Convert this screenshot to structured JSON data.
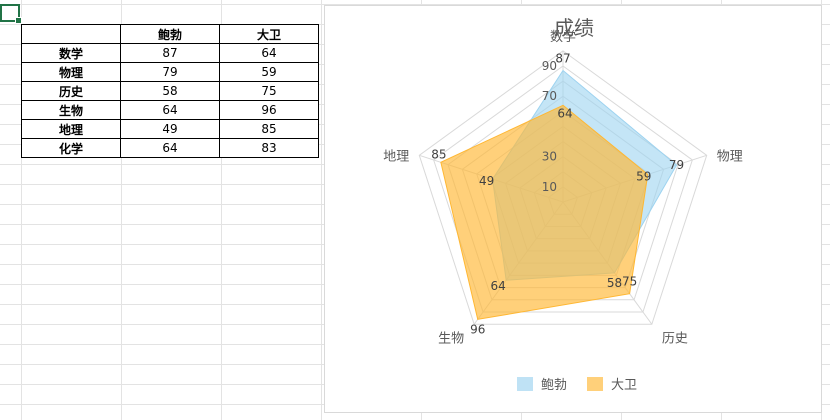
{
  "table": {
    "headers": [
      "",
      "鲍勃",
      "大卫"
    ],
    "rows": [
      {
        "subject": "数学",
        "bob": "87",
        "david": "64"
      },
      {
        "subject": "物理",
        "bob": "79",
        "david": "59"
      },
      {
        "subject": "历史",
        "bob": "58",
        "david": "75"
      },
      {
        "subject": "生物",
        "bob": "64",
        "david": "96"
      },
      {
        "subject": "地理",
        "bob": "49",
        "david": "85"
      },
      {
        "subject": "化学",
        "bob": "64",
        "david": "83"
      }
    ]
  },
  "chart_data": {
    "type": "radar",
    "title": "成绩",
    "categories": [
      "数学",
      "物理",
      "历史",
      "生物",
      "地理"
    ],
    "series": [
      {
        "name": "鲍勃",
        "values": [
          87,
          79,
          58,
          64,
          49
        ],
        "color": "#9dd3f0"
      },
      {
        "name": "大卫",
        "values": [
          64,
          59,
          75,
          96,
          85
        ],
        "color": "#ffb732"
      }
    ],
    "rlim": [
      0,
      90
    ],
    "ticks": [
      10,
      30,
      50,
      70,
      90
    ],
    "tick_labels": [
      "10",
      "30",
      "",
      "70",
      "90"
    ],
    "grid_levels": [
      10,
      20,
      30,
      40,
      50,
      60,
      70,
      80,
      90,
      100
    ],
    "legend": "bottom"
  }
}
